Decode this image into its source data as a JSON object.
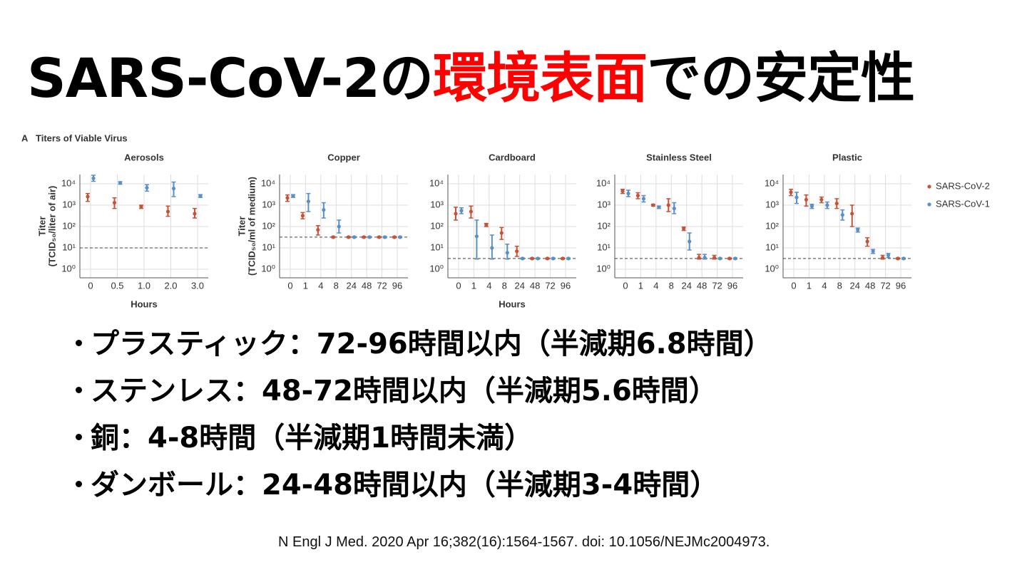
{
  "heading": [
    "SARS-CoV-2の",
    "環境表面",
    "での安定性"
  ],
  "figure_label": "A",
  "figure_title": "Titers of Viable Virus",
  "legend": "right",
  "chart_data": [
    {
      "type": "errorbar",
      "title": "Aerosols",
      "ylabel": [
        "Titer",
        "(TCID₅₀/liter of air)"
      ],
      "xlabel": "Hours",
      "log": true,
      "grid": true,
      "categories": [
        "0",
        "0.5",
        "1.0",
        "2.0",
        "3.0"
      ],
      "detection_limit": 10,
      "ylim": [
        0.4,
        27000
      ],
      "yticks": [
        {
          "value": 1,
          "label": "10⁰"
        },
        {
          "value": 10,
          "label": "10¹"
        },
        {
          "value": 100,
          "label": "10²"
        },
        {
          "value": 1000,
          "label": "10³"
        },
        {
          "value": 10000,
          "label": "10⁴"
        }
      ],
      "series": [
        {
          "name": "SARS-CoV-2",
          "color": "#c4533a",
          "values": [
            2500,
            1300,
            850,
            500,
            400
          ],
          "lower": [
            1500,
            700,
            700,
            300,
            250
          ],
          "upper": [
            3500,
            2200,
            1000,
            900,
            700
          ]
        },
        {
          "name": "SARS-CoV-1",
          "color": "#5a8fc8",
          "values": [
            18000,
            11000,
            6500,
            6000,
            2700
          ],
          "lower": [
            13000,
            9500,
            4500,
            2500,
            2300
          ],
          "upper": [
            25000,
            12500,
            9000,
            12000,
            3100
          ]
        }
      ]
    },
    {
      "type": "errorbar",
      "title": "Copper",
      "ylabel": [
        "Titer",
        "(TCID₅₀/ml of medium)"
      ],
      "log": true,
      "grid": true,
      "categories": [
        "0",
        "1",
        "4",
        "8",
        "24",
        "48",
        "72",
        "96"
      ],
      "detection_limit": 32,
      "ylim": [
        0.4,
        27000
      ],
      "yticks": [
        {
          "value": 1,
          "label": "10⁰"
        },
        {
          "value": 10,
          "label": "10¹"
        },
        {
          "value": 100,
          "label": "10²"
        },
        {
          "value": 1000,
          "label": "10³"
        },
        {
          "value": 10000,
          "label": "10⁴"
        }
      ],
      "series": [
        {
          "name": "SARS-CoV-2",
          "color": "#c4533a",
          "values": [
            2200,
            320,
            70,
            32,
            32,
            32,
            32,
            32
          ],
          "lower": [
            1500,
            230,
            40,
            30,
            30,
            30,
            30,
            30
          ],
          "upper": [
            3000,
            450,
            110,
            34,
            34,
            34,
            34,
            34
          ]
        },
        {
          "name": "SARS-CoV-1",
          "color": "#5a8fc8",
          "values": [
            2700,
            1500,
            600,
            100,
            32,
            32,
            32,
            32
          ],
          "lower": [
            2300,
            500,
            250,
            50,
            30,
            30,
            30,
            30
          ],
          "upper": [
            3100,
            3500,
            1300,
            200,
            34,
            34,
            34,
            34
          ]
        }
      ]
    },
    {
      "type": "errorbar",
      "title": "Cardboard",
      "xlabel": "Hours",
      "log": true,
      "grid": true,
      "categories": [
        "0",
        "1",
        "4",
        "8",
        "24",
        "48",
        "72",
        "96"
      ],
      "detection_limit": 3.2,
      "ylim": [
        0.4,
        27000
      ],
      "yticks": [
        {
          "value": 1,
          "label": "10⁰"
        },
        {
          "value": 10,
          "label": "10¹"
        },
        {
          "value": 100,
          "label": "10²"
        },
        {
          "value": 1000,
          "label": "10³"
        },
        {
          "value": 10000,
          "label": "10⁴"
        }
      ],
      "series": [
        {
          "name": "SARS-CoV-2",
          "color": "#c4533a",
          "values": [
            400,
            500,
            120,
            50,
            7,
            3.2,
            3.2,
            3.2
          ],
          "lower": [
            200,
            250,
            100,
            25,
            4,
            3,
            3,
            3
          ],
          "upper": [
            800,
            900,
            140,
            90,
            12,
            3.4,
            3.4,
            3.4
          ]
        },
        {
          "name": "SARS-CoV-1",
          "color": "#5a8fc8",
          "values": [
            550,
            35,
            10,
            6,
            3.2,
            3.2,
            3.2,
            3.2
          ],
          "lower": [
            400,
            3,
            3,
            3,
            3,
            3,
            3,
            3
          ],
          "upper": [
            750,
            200,
            40,
            15,
            3.4,
            3.4,
            3.4,
            3.4
          ]
        }
      ]
    },
    {
      "type": "errorbar",
      "title": "Stainless Steel",
      "log": true,
      "grid": true,
      "categories": [
        "0",
        "1",
        "4",
        "8",
        "24",
        "48",
        "72",
        "96"
      ],
      "detection_limit": 3.2,
      "ylim": [
        0.4,
        27000
      ],
      "yticks": [
        {
          "value": 1,
          "label": "10⁰"
        },
        {
          "value": 10,
          "label": "10¹"
        },
        {
          "value": 100,
          "label": "10²"
        },
        {
          "value": 1000,
          "label": "10³"
        },
        {
          "value": 10000,
          "label": "10⁴"
        }
      ],
      "series": [
        {
          "name": "SARS-CoV-2",
          "color": "#c4533a",
          "values": [
            4500,
            2800,
            1000,
            1000,
            80,
            3.5,
            3.5,
            3.2
          ],
          "lower": [
            3500,
            2000,
            900,
            500,
            65,
            3,
            3,
            3
          ],
          "upper": [
            5500,
            3800,
            1100,
            2000,
            95,
            5,
            4.5,
            3.4
          ]
        },
        {
          "name": "SARS-CoV-1",
          "color": "#5a8fc8",
          "values": [
            3500,
            2000,
            800,
            700,
            20,
            3.5,
            3.2,
            3.2
          ],
          "lower": [
            2500,
            1400,
            700,
            400,
            8,
            3,
            3,
            3
          ],
          "upper": [
            5000,
            2800,
            900,
            1300,
            50,
            5,
            3.4,
            3.4
          ]
        }
      ]
    },
    {
      "type": "errorbar",
      "title": "Plastic",
      "log": true,
      "grid": true,
      "categories": [
        "0",
        "1",
        "4",
        "8",
        "24",
        "48",
        "72",
        "96"
      ],
      "detection_limit": 3.2,
      "ylim": [
        0.4,
        27000
      ],
      "yticks": [
        {
          "value": 1,
          "label": "10⁰"
        },
        {
          "value": 10,
          "label": "10¹"
        },
        {
          "value": 100,
          "label": "10²"
        },
        {
          "value": 1000,
          "label": "10³"
        },
        {
          "value": 10000,
          "label": "10⁴"
        }
      ],
      "series": [
        {
          "name": "SARS-CoV-2",
          "color": "#c4533a",
          "values": [
            4000,
            1800,
            1800,
            1200,
            400,
            20,
            3.5,
            3.2
          ],
          "lower": [
            2800,
            900,
            1300,
            700,
            100,
            12,
            3,
            3
          ],
          "upper": [
            5500,
            3000,
            2400,
            2000,
            1000,
            30,
            4.5,
            3.4
          ]
        },
        {
          "name": "SARS-CoV-1",
          "color": "#5a8fc8",
          "values": [
            2300,
            900,
            1000,
            350,
            70,
            7,
            4.5,
            3.2
          ],
          "lower": [
            1200,
            700,
            700,
            200,
            55,
            5.5,
            3.5,
            3
          ],
          "upper": [
            4000,
            1100,
            1400,
            600,
            85,
            8.5,
            5.5,
            3.4
          ]
        }
      ]
    }
  ],
  "bullets": [
    "プラスティック：72-96時間以内（半減期6.8時間）",
    "ステンレス：48-72時間以内（半減期5.6時間）",
    "銅：4-8時間（半減期1時間未満）",
    "ダンボール：24-48時間以内（半減期3-4時間）"
  ],
  "citation": "N Engl J Med. 2020 Apr 16;382(16):1564-1567. doi: 10.1056/NEJMc2004973."
}
